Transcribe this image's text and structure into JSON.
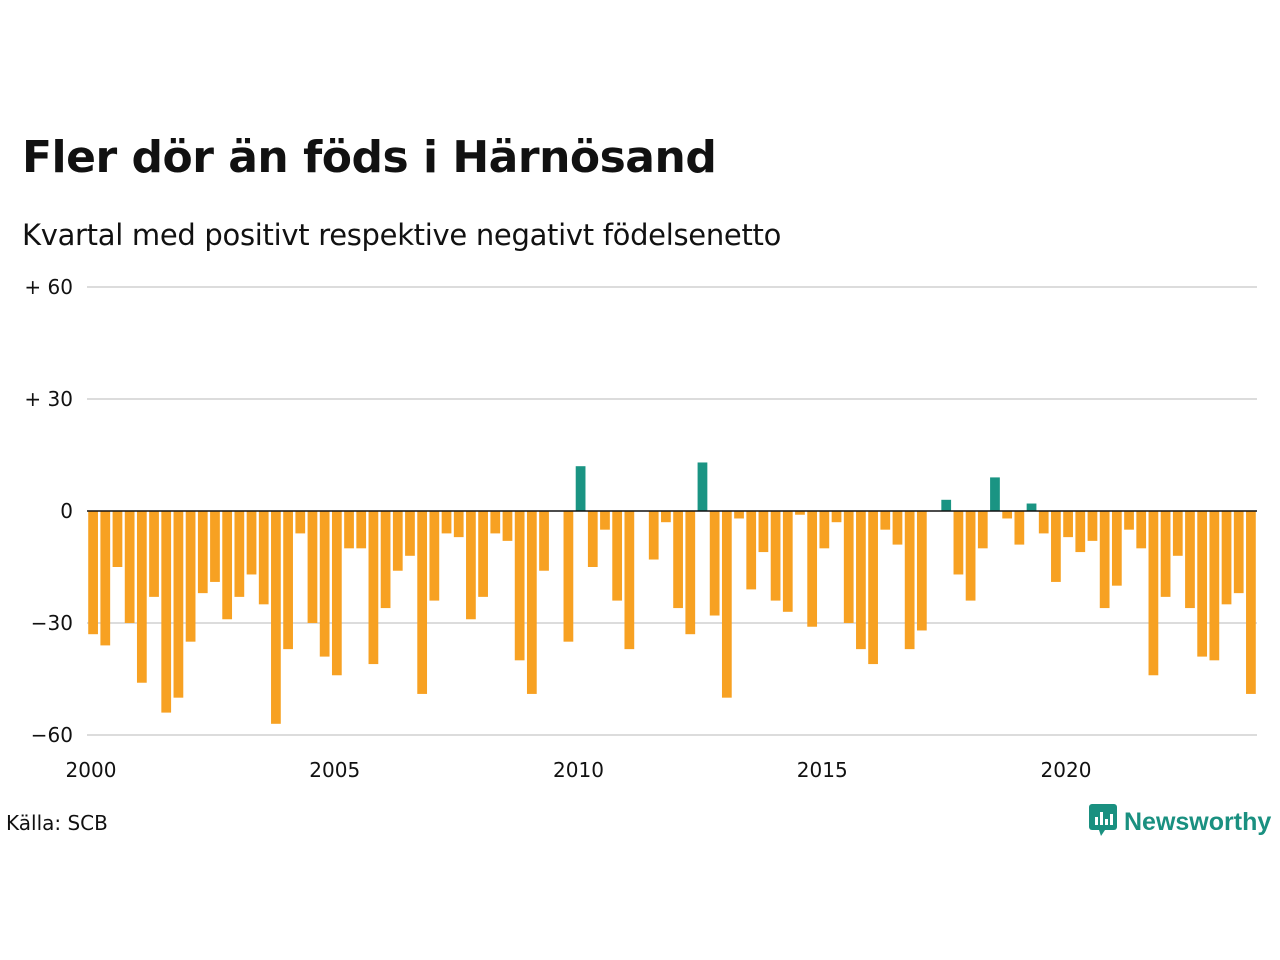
{
  "title": "Fler dör än föds i Härnösand",
  "subtitle": "Kvartal med positivt respektive negativt födelsenetto",
  "source": "Källa: SCB",
  "brand": {
    "name": "Newsworthy",
    "icon": "newsworthy-logo-icon",
    "color": "#1a9080"
  },
  "colors": {
    "positive": "#1a9483",
    "negative": "#f7a122",
    "grid": "#dcdcdc",
    "zero_line": "#111111"
  },
  "chart_data": {
    "type": "bar",
    "title": "Fler dör än föds i Härnösand",
    "subtitle": "Kvartal med positivt respektive negativt födelsenetto",
    "xlabel": "",
    "ylabel": "",
    "ylim": [
      -60,
      60
    ],
    "yticks": [
      -60,
      -30,
      0,
      30,
      60
    ],
    "ytick_labels": [
      "−60",
      "−30",
      "0",
      "+ 30",
      "+ 60"
    ],
    "xticks": [
      2000,
      2005,
      2010,
      2015,
      2020
    ],
    "xtick_labels": [
      "2000",
      "2005",
      "2010",
      "2015",
      "2020"
    ],
    "x_start": "2000 Q1",
    "x_end": "2023 Q4",
    "grid": true,
    "values": [
      -33,
      -36,
      -15,
      -30,
      -46,
      -23,
      -54,
      -50,
      -35,
      -22,
      -19,
      -29,
      -23,
      -17,
      -25,
      -57,
      -37,
      -6,
      -30,
      -39,
      -44,
      -10,
      -10,
      -41,
      -26,
      -16,
      -12,
      -49,
      -24,
      -6,
      -7,
      -29,
      -23,
      -6,
      -8,
      -40,
      -49,
      -16,
      0,
      -35,
      12,
      -15,
      -5,
      -24,
      -37,
      0,
      -13,
      -3,
      -26,
      -33,
      13,
      -28,
      -50,
      -2,
      -21,
      -11,
      -24,
      -27,
      -1,
      -31,
      -10,
      -3,
      -30,
      -37,
      -41,
      -5,
      -9,
      -37,
      -32,
      0,
      3,
      -17,
      -24,
      -10,
      9,
      -2,
      -9,
      2,
      -6,
      -19,
      -7,
      -11,
      -8,
      -26,
      -20,
      -5,
      -10,
      -44,
      -23,
      -12,
      -26,
      -39,
      -40,
      -25,
      -22,
      -49
    ]
  }
}
